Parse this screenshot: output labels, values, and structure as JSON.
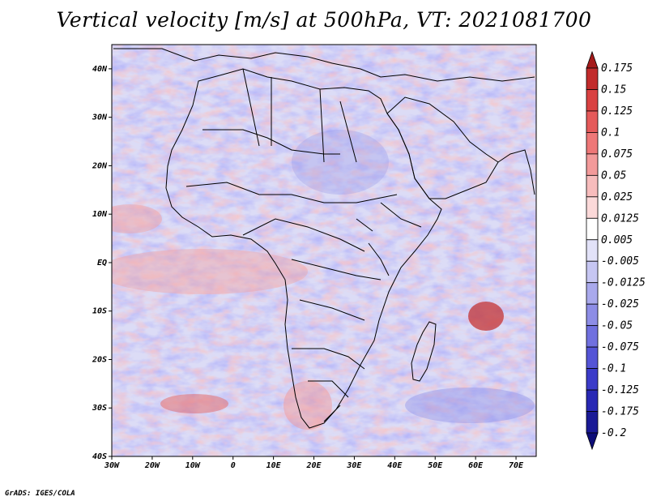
{
  "title": "Vertical velocity [m/s] at 500hPa, VT: 2021081700",
  "credit": "GrADS: IGES/COLA",
  "map": {
    "lon_range": [
      -30,
      75
    ],
    "lat_range": [
      -40,
      45
    ],
    "x_ticks": [
      "30W",
      "20W",
      "10W",
      "0",
      "10E",
      "20E",
      "30E",
      "40E",
      "50E",
      "60E",
      "70E"
    ],
    "x_tick_lons": [
      -30,
      -20,
      -10,
      0,
      10,
      20,
      30,
      40,
      50,
      60,
      70
    ],
    "y_ticks": [
      "40N",
      "30N",
      "20N",
      "10N",
      "EQ",
      "10S",
      "20S",
      "30S",
      "40S"
    ],
    "y_tick_lats": [
      40,
      30,
      20,
      10,
      0,
      -10,
      -20,
      -30,
      -40
    ]
  },
  "colorbar": {
    "levels": [
      "0.175",
      "0.15",
      "0.125",
      "0.1",
      "0.075",
      "0.05",
      "0.025",
      "0.0125",
      "0.005",
      "-0.005",
      "-0.0125",
      "-0.025",
      "-0.05",
      "-0.075",
      "-0.1",
      "-0.125",
      "-0.175",
      "-0.2"
    ],
    "colors": [
      "#a51a1a",
      "#c22b2b",
      "#d94141",
      "#e55a5a",
      "#ee7777",
      "#f39a9a",
      "#f7bcbc",
      "#fbd9d9",
      "#ffffff",
      "#e2e2f8",
      "#c6c6f2",
      "#a9a9ec",
      "#8d8de6",
      "#7070df",
      "#5454d6",
      "#3b3bc9",
      "#2828b4",
      "#1a1a96",
      "#0d0d78"
    ]
  },
  "chart_data": {
    "type": "heatmap",
    "title": "Vertical velocity [m/s] at 500hPa, VT: 2021081700",
    "variable": "Vertical velocity",
    "units": "m/s",
    "level": "500hPa",
    "valid_time": "2021081700",
    "x_range": [
      -30,
      75
    ],
    "y_range": [
      -40,
      45
    ],
    "contour_levels": [
      0.175,
      0.15,
      0.125,
      0.1,
      0.075,
      0.05,
      0.025,
      0.0125,
      0.005,
      -0.005,
      -0.0125,
      -0.025,
      -0.05,
      -0.075,
      -0.1,
      -0.125,
      -0.175,
      -0.2
    ]
  }
}
